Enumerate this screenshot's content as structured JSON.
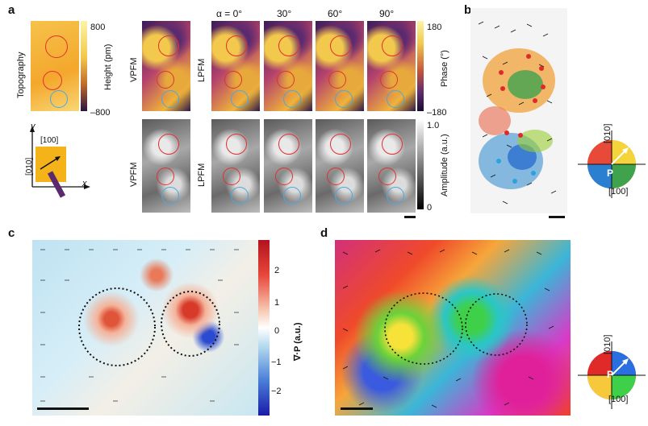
{
  "panel_labels": {
    "a": "a",
    "b": "b",
    "c": "c",
    "d": "d"
  },
  "topography": {
    "label": "Topography",
    "colorbar_max": "800",
    "colorbar_min": "–800",
    "colorbar_title": "Height (pm)"
  },
  "axes_inset": {
    "y": "y",
    "x": "x",
    "dir100": "[100]",
    "dir010": "[010]"
  },
  "row_labels": {
    "vpfm": "VPFM",
    "lpfm": "LPFM"
  },
  "angles": {
    "a0": "α = 0°",
    "a30": "30°",
    "a60": "60°",
    "a90": "90°"
  },
  "phase_colorbar": {
    "max": "180",
    "min": "–180",
    "title": "Phase (°)"
  },
  "amplitude_colorbar": {
    "max": "1.0",
    "min": "0",
    "title": "Amplitude (a.u.)"
  },
  "wheel_b": {
    "top": "[010]",
    "right": "[100]",
    "center": "P"
  },
  "divergence_colorbar": {
    "title": "∇·P (a.u.)",
    "ticks": [
      "2",
      "1",
      "0",
      "−1",
      "−2"
    ]
  },
  "wheel_d": {
    "top": "[010]",
    "right": "[100]",
    "center": "P"
  },
  "colors": {
    "red_circle": "#e23030",
    "blue_circle": "#4aa8e0",
    "accent": "#f0b43a"
  }
}
